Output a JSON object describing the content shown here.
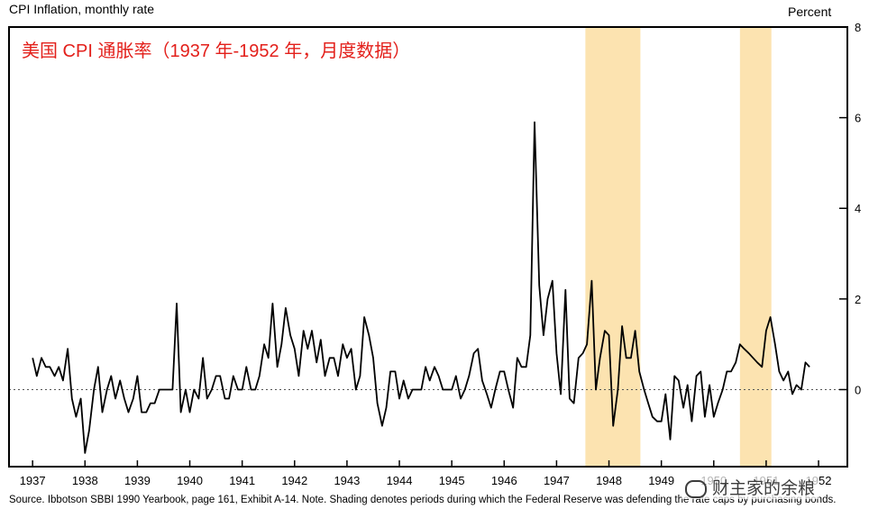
{
  "header": {
    "title": "CPI Inflation, monthly rate",
    "unit": "Percent",
    "overlay_title": "美国 CPI 通胀率（1937 年-1952 年，月度数据）"
  },
  "footer": {
    "source": "Source.  Ibbotson SBBI 1990 Yearbook, page 161, Exhibit A-14. Note. Shading denotes periods during which the Federal Reserve was defending the rate caps by purchasing bonds.",
    "watermark": "财主家的余粮"
  },
  "colors": {
    "line": "#000000",
    "shading": "#fce3b0",
    "overlay_title": "#e3201b",
    "zero_line": "#555555"
  },
  "chart_data": {
    "type": "line",
    "title": "CPI Inflation, monthly rate",
    "ylabel": "Percent",
    "ylim": [
      -1.7,
      8
    ],
    "yticks": [
      0,
      2,
      4,
      6,
      8
    ],
    "y_axis_side": "right",
    "x_range": [
      1936.55,
      1952.55
    ],
    "x_tick_labels": [
      "1937",
      "1938",
      "1939",
      "1940",
      "1941",
      "1942",
      "1943",
      "1944",
      "1945",
      "1946",
      "1947",
      "1948",
      "1949",
      "1950",
      "1951",
      "1952"
    ],
    "x_tick_values": [
      1937,
      1938,
      1939,
      1940,
      1941,
      1942,
      1943,
      1944,
      1945,
      1946,
      1947,
      1948,
      1949,
      1950,
      1951,
      1952
    ],
    "zero_line": "dotted",
    "shaded_periods": [
      [
        1947.55,
        1948.6
      ],
      [
        1950.5,
        1951.1
      ]
    ],
    "series": [
      {
        "x": [
          1937.0,
          1937.08,
          1937.17,
          1937.25,
          1937.33,
          1937.42,
          1937.5,
          1937.58,
          1937.67,
          1937.75,
          1937.83,
          1937.92,
          1938.0,
          1938.08,
          1938.17,
          1938.25,
          1938.33,
          1938.42,
          1938.5,
          1938.58,
          1938.67,
          1938.75,
          1938.83,
          1938.92,
          1939.0,
          1939.08,
          1939.17,
          1939.25,
          1939.33,
          1939.42,
          1939.5,
          1939.58,
          1939.67,
          1939.75,
          1939.83,
          1939.92,
          1940.0,
          1940.08,
          1940.17,
          1940.25,
          1940.33,
          1940.42,
          1940.5,
          1940.58,
          1940.67,
          1940.75,
          1940.83,
          1940.92,
          1941.0,
          1941.08,
          1941.17,
          1941.25,
          1941.33,
          1941.42,
          1941.5,
          1941.58,
          1941.67,
          1941.75,
          1941.83,
          1941.92,
          1942.0,
          1942.08,
          1942.17,
          1942.25,
          1942.33,
          1942.42,
          1942.5,
          1942.58,
          1942.67,
          1942.75,
          1942.83,
          1942.92,
          1943.0,
          1943.08,
          1943.17,
          1943.25,
          1943.33,
          1943.42,
          1943.5,
          1943.58,
          1943.67,
          1943.75,
          1943.83,
          1943.92,
          1944.0,
          1944.08,
          1944.17,
          1944.25,
          1944.33,
          1944.42,
          1944.5,
          1944.58,
          1944.67,
          1944.75,
          1944.83,
          1944.92,
          1945.0,
          1945.08,
          1945.17,
          1945.25,
          1945.33,
          1945.42,
          1945.5,
          1945.58,
          1945.67,
          1945.75,
          1945.83,
          1945.92,
          1946.0,
          1946.08,
          1946.17,
          1946.25,
          1946.33,
          1946.42,
          1946.5,
          1946.58,
          1946.67,
          1946.75,
          1946.83,
          1946.92,
          1947.0,
          1947.08,
          1947.17,
          1947.25,
          1947.33,
          1947.42,
          1947.5,
          1947.58,
          1947.67,
          1947.75,
          1947.83,
          1947.92,
          1948.0,
          1948.08,
          1948.17,
          1948.25,
          1948.33,
          1948.42,
          1948.5,
          1948.58,
          1948.67,
          1948.75,
          1948.83,
          1948.92,
          1949.0,
          1949.08,
          1949.17,
          1949.25,
          1949.33,
          1949.42,
          1949.5,
          1949.58,
          1949.67,
          1949.75,
          1949.83,
          1949.92,
          1950.0,
          1950.08,
          1950.17,
          1950.25,
          1950.33,
          1950.42,
          1950.5,
          1950.58,
          1950.67,
          1950.75,
          1950.83,
          1950.92,
          1951.0,
          1951.08,
          1951.17,
          1951.25,
          1951.33,
          1951.42,
          1951.5,
          1951.58,
          1951.67,
          1951.75,
          1951.83
        ],
        "values": [
          0.7,
          0.3,
          0.7,
          0.5,
          0.5,
          0.3,
          0.5,
          0.2,
          0.9,
          -0.2,
          -0.6,
          -0.2,
          -1.4,
          -0.9,
          0.0,
          0.5,
          -0.5,
          0.0,
          0.3,
          -0.2,
          0.2,
          -0.2,
          -0.5,
          -0.2,
          0.3,
          -0.5,
          -0.5,
          -0.3,
          -0.3,
          0.0,
          0.0,
          0.0,
          0.0,
          1.9,
          -0.5,
          0.0,
          -0.5,
          0.0,
          -0.2,
          0.7,
          -0.2,
          0.0,
          0.3,
          0.3,
          -0.2,
          -0.2,
          0.3,
          0.0,
          0.0,
          0.5,
          0.0,
          0.0,
          0.3,
          1.0,
          0.7,
          1.9,
          0.5,
          1.0,
          1.8,
          1.2,
          0.9,
          0.3,
          1.3,
          0.9,
          1.3,
          0.6,
          1.1,
          0.3,
          0.7,
          0.7,
          0.3,
          1.0,
          0.7,
          0.9,
          0.0,
          0.3,
          1.6,
          1.2,
          0.7,
          -0.3,
          -0.8,
          -0.4,
          0.4,
          0.4,
          -0.2,
          0.2,
          -0.2,
          0.0,
          0.0,
          0.0,
          0.5,
          0.2,
          0.5,
          0.3,
          0.0,
          0.0,
          0.0,
          0.3,
          -0.2,
          0.0,
          0.3,
          0.8,
          0.9,
          0.2,
          -0.1,
          -0.4,
          0.0,
          0.4,
          0.4,
          0.0,
          -0.4,
          0.7,
          0.5,
          0.5,
          1.2,
          5.9,
          2.3,
          1.2,
          2.0,
          2.4,
          0.8,
          -0.1,
          2.2,
          -0.2,
          -0.3,
          0.7,
          0.8,
          1.0,
          2.4,
          0.0,
          0.7,
          1.3,
          1.2,
          -0.8,
          0.0,
          1.4,
          0.7,
          0.7,
          1.3,
          0.4,
          0.0,
          -0.3,
          -0.6,
          -0.7,
          -0.7,
          -0.1,
          -1.1,
          0.3,
          0.2,
          -0.4,
          0.1,
          -0.7,
          0.3,
          0.4,
          -0.6,
          0.1,
          -0.6,
          -0.3,
          0.0,
          0.4,
          0.4,
          0.6,
          1.0,
          0.9,
          0.8,
          0.7,
          0.6,
          0.5,
          1.3,
          1.6,
          1.0,
          0.4,
          0.2,
          0.4,
          -0.1,
          0.1,
          0.0,
          0.6,
          0.5
        ]
      }
    ]
  }
}
